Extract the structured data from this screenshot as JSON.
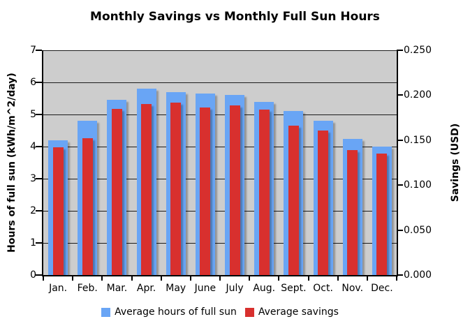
{
  "title": "Monthly Savings vs Monthly Full Sun Hours",
  "colors": {
    "sun_bar": "#69A5F5",
    "savings_bar": "#D8302E",
    "plot_background": "#CDCDCD",
    "gridline": "#1C1C1C",
    "text": "#000000"
  },
  "left_axis": {
    "title": "Hours of full sun (kWh/m^2/day)",
    "ticks": [
      "7",
      "6",
      "5",
      "4",
      "3",
      "2",
      "1",
      "0"
    ]
  },
  "right_axis": {
    "title": "Savings (USD)",
    "ticks": [
      "0.250",
      "0.200",
      "0.150",
      "0.100",
      "0.050",
      "0.000"
    ]
  },
  "legend": [
    {
      "label": "Average hours of full sun",
      "color": "#69A5F5",
      "series": "sun"
    },
    {
      "label": "Average savings",
      "color": "#D8302E",
      "series": "savings"
    }
  ],
  "chart_data": {
    "type": "bar",
    "title": "Monthly Savings vs Monthly Full Sun Hours",
    "categories": [
      "Jan.",
      "Feb.",
      "Mar.",
      "Apr.",
      "May",
      "June",
      "July",
      "Aug.",
      "Sept.",
      "Oct.",
      "Nov.",
      "Dec."
    ],
    "series": [
      {
        "name": "Average hours of full sun",
        "axis": "left",
        "units": "kWh/m^2/day",
        "values": [
          4.2,
          4.8,
          5.45,
          5.8,
          5.7,
          5.65,
          5.6,
          5.4,
          5.1,
          4.8,
          4.25,
          4.0
        ]
      },
      {
        "name": "Average savings",
        "axis": "right",
        "units": "USD",
        "values": [
          0.142,
          0.152,
          0.185,
          0.19,
          0.192,
          0.186,
          0.189,
          0.184,
          0.166,
          0.161,
          0.139,
          0.135
        ]
      }
    ],
    "left_ylabel": "Hours of full sun (kWh/m^2/day)",
    "right_ylabel": "Savings (USD)",
    "left_ylim": [
      0,
      7
    ],
    "right_ylim": [
      0,
      0.25
    ],
    "left_tick_step": 1,
    "right_tick_step": 0.05,
    "grid": true,
    "legend_position": "bottom"
  }
}
